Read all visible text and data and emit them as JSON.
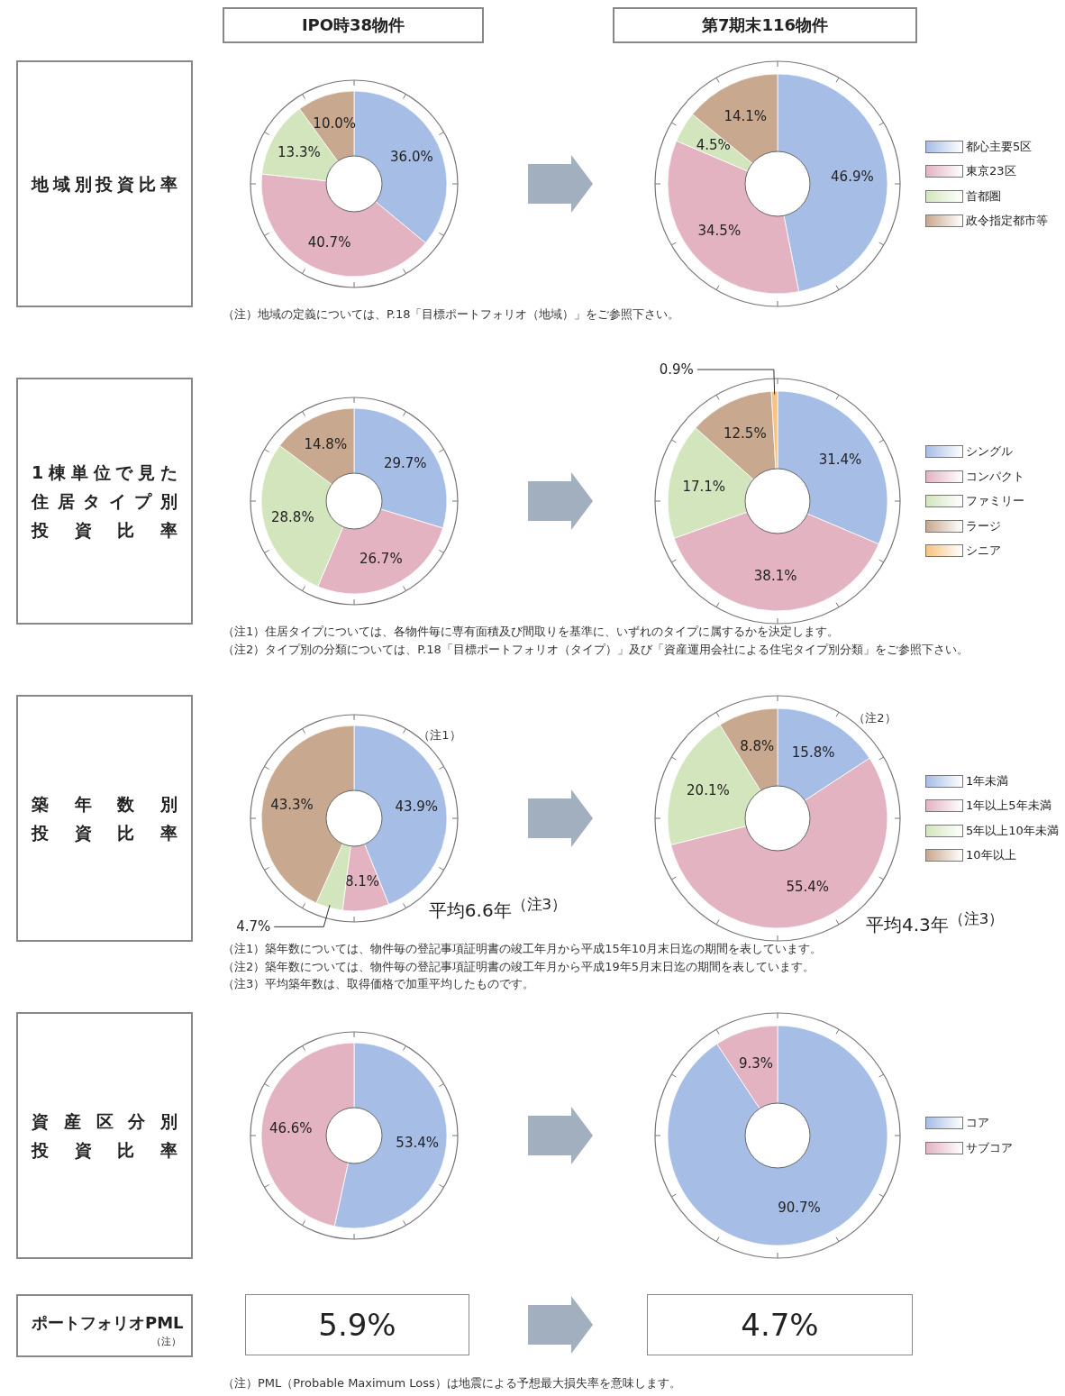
{
  "chart_data": [
    {
      "type": "other",
      "categories": [
        "IPO時38物件",
        "第7期末116物件"
      ]
    },
    {
      "type": "donut",
      "ylabel": "地域別投資比率",
      "categories": [
        null,
        null,
        null,
        null
      ],
      "values": [
        36.0,
        40.7,
        13.3,
        10.0
      ],
      "value_labels": [
        "36.0%",
        "40.7%",
        "13.3%",
        "10.0%"
      ],
      "colors": [
        "#a6bde6",
        "#e3b3c2",
        "#d2e5bd",
        "#c8a88f"
      ],
      "annotations": [
        "（注）地域の定義については、P.18「目標ポートフォリオ（地域）」をご参照下さい。"
      ]
    },
    {
      "type": "donut",
      "categories": [
        "都心主要5区",
        "東京23区",
        "首都圏",
        "政令指定都市等"
      ],
      "values": [
        46.9,
        34.5,
        4.5,
        14.1
      ],
      "value_labels": [
        "46.9%",
        "34.5%",
        "4.5%",
        "14.1%"
      ],
      "colors": [
        "#a6bde6",
        "#e3b3c2",
        "#d2e5bd",
        "#c8a88f"
      ],
      "legend": "right"
    },
    {
      "type": "donut",
      "ylabel": "1棟単位で見た住居タイプ別投資比率",
      "categories": [
        null,
        null,
        null,
        null
      ],
      "values": [
        29.7,
        26.7,
        28.8,
        14.8
      ],
      "value_labels": [
        "29.7%",
        "26.7%",
        "28.8%",
        "14.8%"
      ],
      "colors": [
        "#a6bde6",
        "#e3b3c2",
        "#d2e5bd",
        "#c8a88f"
      ],
      "annotations": [
        "（注1）住居タイプについては、各物件毎に専有面積及び間取りを基準に、いずれのタイプに属するかを決定します。",
        "（注2）タイプ別の分類については、P.18「目標ポートフォリオ（タイプ）」及び「資産運用会社による住宅タイプ別分類」をご参照下さい。"
      ]
    },
    {
      "type": "donut",
      "categories": [
        "シングル",
        "コンパクト",
        "ファミリー",
        "ラージ",
        "シニア"
      ],
      "values": [
        31.4,
        38.1,
        17.1,
        12.5,
        0.9
      ],
      "value_labels": [
        "31.4%",
        "38.1%",
        "17.1%",
        "12.5%",
        "0.9%"
      ],
      "colors": [
        "#a6bde6",
        "#e3b3c2",
        "#d2e5bd",
        "#c8a88f",
        "#f9c27f"
      ],
      "legend": "right"
    },
    {
      "type": "donut",
      "ylabel": "築年数別投資比率",
      "subtitle": "（注1）",
      "xlabel": "平均6.6年$^{（注3）}$",
      "categories": [
        null,
        null,
        null,
        null
      ],
      "values": [
        43.9,
        8.1,
        4.7,
        43.3
      ],
      "value_labels": [
        "43.9%",
        "8.1%",
        "4.7%",
        "43.3%"
      ],
      "colors": [
        "#a6bde6",
        "#e3b3c2",
        "#d2e5bd",
        "#c8a88f"
      ],
      "annotations": [
        "（注1）築年数については、物件毎の登記事項証明書の竣工年月から平成15年10月末日迄の期間を表しています。",
        "（注2）築年数については、物件毎の登記事項証明書の竣工年月から平成19年5月末日迄の期間を表しています。",
        "（注3）平均築年数は、取得価格で加重平均したものです。"
      ]
    },
    {
      "type": "donut",
      "subtitle": "（注2）",
      "xlabel": "平均4.3年$^{（注3）}$",
      "categories": [
        "1年未満",
        "1年以上5年未満",
        "5年以上10年未満",
        "10年以上"
      ],
      "values": [
        15.8,
        55.4,
        20.1,
        8.8
      ],
      "value_labels": [
        "15.8%",
        "55.4%",
        "20.1%",
        "8.8%"
      ],
      "colors": [
        "#a6bde6",
        "#e3b3c2",
        "#d2e5bd",
        "#c8a88f"
      ],
      "legend": "right"
    },
    {
      "type": "donut",
      "ylabel": "資産区分別投資比率",
      "categories": [
        null,
        null
      ],
      "values": [
        53.4,
        46.6
      ],
      "value_labels": [
        "53.4%",
        "46.6%"
      ],
      "colors": [
        "#a6bde6",
        "#e3b3c2"
      ]
    },
    {
      "type": "donut",
      "categories": [
        "コア",
        "サブコア"
      ],
      "values": [
        90.7,
        9.3
      ],
      "value_labels": [
        "90.7%",
        "9.3%"
      ],
      "colors": [
        "#a6bde6",
        "#e3b3c2"
      ],
      "legend": "right"
    },
    {
      "type": "other",
      "ylabel": "ポートフォリオPML",
      "subtitle": "（注）",
      "values": [
        5.9,
        4.7
      ],
      "value_labels": [
        "5.9%",
        "4.7%"
      ],
      "annotations": [
        "（注）PML（Probable Maximum Loss）は地震による予想最大損失率を意味します。"
      ]
    }
  ]
}
